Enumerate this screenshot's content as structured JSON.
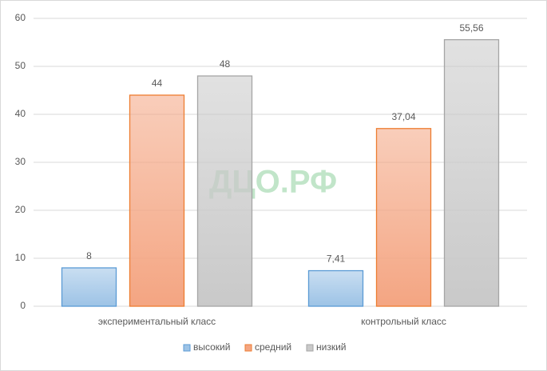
{
  "chart_data": {
    "type": "bar",
    "categories": [
      "экспериментальный класс",
      "контрольный класс"
    ],
    "series": [
      {
        "name": "высокий",
        "color": "#9dc3e6",
        "edgecolor": "#5b9bd5",
        "values": [
          8,
          7.41
        ],
        "value_labels": [
          "8",
          "7,41"
        ]
      },
      {
        "name": "средний",
        "color": "#f4a582",
        "edgecolor": "#ed7d31",
        "values": [
          44,
          37.04
        ],
        "value_labels": [
          "44",
          "37,04"
        ]
      },
      {
        "name": "низкий",
        "color": "#c9c9c9",
        "edgecolor": "#a5a5a5",
        "values": [
          48,
          55.56
        ],
        "value_labels": [
          "48",
          "55,56"
        ]
      }
    ],
    "ylim": [
      0,
      60
    ],
    "yticks": [
      0,
      10,
      20,
      30,
      40,
      50,
      60
    ],
    "grid": true,
    "legend": "bottom",
    "watermark": "ДЦО.РФ"
  }
}
